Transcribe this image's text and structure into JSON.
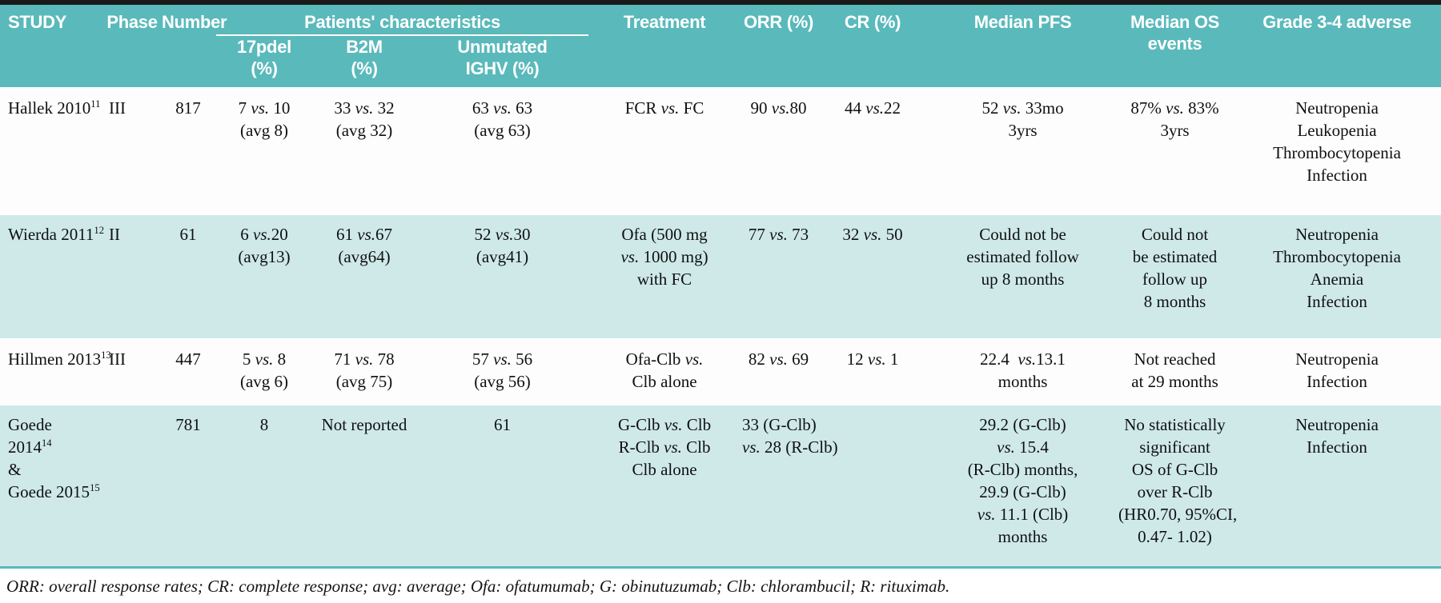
{
  "colors": {
    "header_bg": "#5ab9bb",
    "row_alt_bg": "#cfe9e9",
    "row_white_bg": "#fdfdfd",
    "top_border": "#1a1a1a",
    "header_text": "#ffffff"
  },
  "table": {
    "header": {
      "study": "STUDY",
      "phase": "Phase",
      "number": "Number",
      "patients_group": "Patients' characteristics",
      "del17p": "17pdel\n(%)",
      "b2m": "B2M\n(%)",
      "ighv": "Unmutated\nIGHV (%)",
      "treatment": "Treatment",
      "orr": "ORR (%)",
      "cr": "CR (%)",
      "median_pfs": "Median PFS",
      "median_os": "Median OS\nevents",
      "adverse": "Grade 3-4 adverse"
    },
    "rows": [
      {
        "study": "Hallek 2010^{11}",
        "phase": "III",
        "number": "817",
        "del17p": "7 vs. 10\n(avg 8)",
        "b2m": "33 vs. 32\n(avg 32)",
        "ighv": "63 vs. 63\n(avg 63)",
        "treatment": "FCR vs. FC",
        "orr": "90 vs.80",
        "cr": "44 vs.22",
        "median_pfs": "52 vs. 33mo\n3yrs",
        "median_os": "87% vs. 83%\n3yrs",
        "adverse": "Neutropenia\nLeukopenia\nThrombocytopenia\nInfection"
      },
      {
        "study": "Wierda 2011^{12}",
        "phase": "II",
        "number": "61",
        "del17p": "6 vs.20\n(avg13)",
        "b2m": "61 vs.67\n(avg64)",
        "ighv": "52 vs.30\n(avg41)",
        "treatment": "Ofa (500 mg\nvs. 1000 mg)\nwith FC",
        "orr": "77 vs. 73",
        "cr": "32 vs. 50",
        "median_pfs": "Could not be\nestimated follow\nup 8 months",
        "median_os": "Could not\nbe estimated\nfollow up\n8 months",
        "adverse": "Neutropenia\nThrombocytopenia\nAnemia\nInfection"
      },
      {
        "study": "Hillmen 2013^{13}",
        "phase": "III",
        "number": "447",
        "del17p": "5 vs. 8\n(avg 6)",
        "b2m": "71 vs. 78\n(avg 75)",
        "ighv": "57 vs. 56\n(avg 56)",
        "treatment": "Ofa-Clb vs.\nClb alone",
        "orr": "82 vs. 69",
        "cr": "12 vs. 1",
        "median_pfs": "22.4  vs.13.1\nmonths",
        "median_os": "Not reached\nat 29 months",
        "adverse": "Neutropenia\nInfection"
      },
      {
        "study": "Goede\n2014^{14}\n&\nGoede 2015^{15}",
        "phase": "",
        "number": "781",
        "del17p": "8",
        "b2m": "Not reported",
        "ighv": "61",
        "treatment": "G-Clb vs. Clb\nR-Clb vs. Clb\nClb alone",
        "orr": "33 (G-Clb)\nvs. 28 (R-Clb)",
        "cr": "",
        "median_pfs": "29.2 (G-Clb)\nvs. 15.4\n(R-Clb) months,\n29.9 (G-Clb)\nvs. 11.1 (Clb)\nmonths",
        "median_os": "No statistically\nsignificant\nOS of G-Clb\nover R-Clb\n(HR0.70, 95%CI,\n0.47- 1.02)",
        "adverse": "Neutropenia\nInfection"
      }
    ]
  },
  "footnote": "ORR: overall response rates; CR: complete response; avg: average; Ofa: ofatumumab; G: obinutuzumab; Clb: chlorambucil; R: rituximab."
}
